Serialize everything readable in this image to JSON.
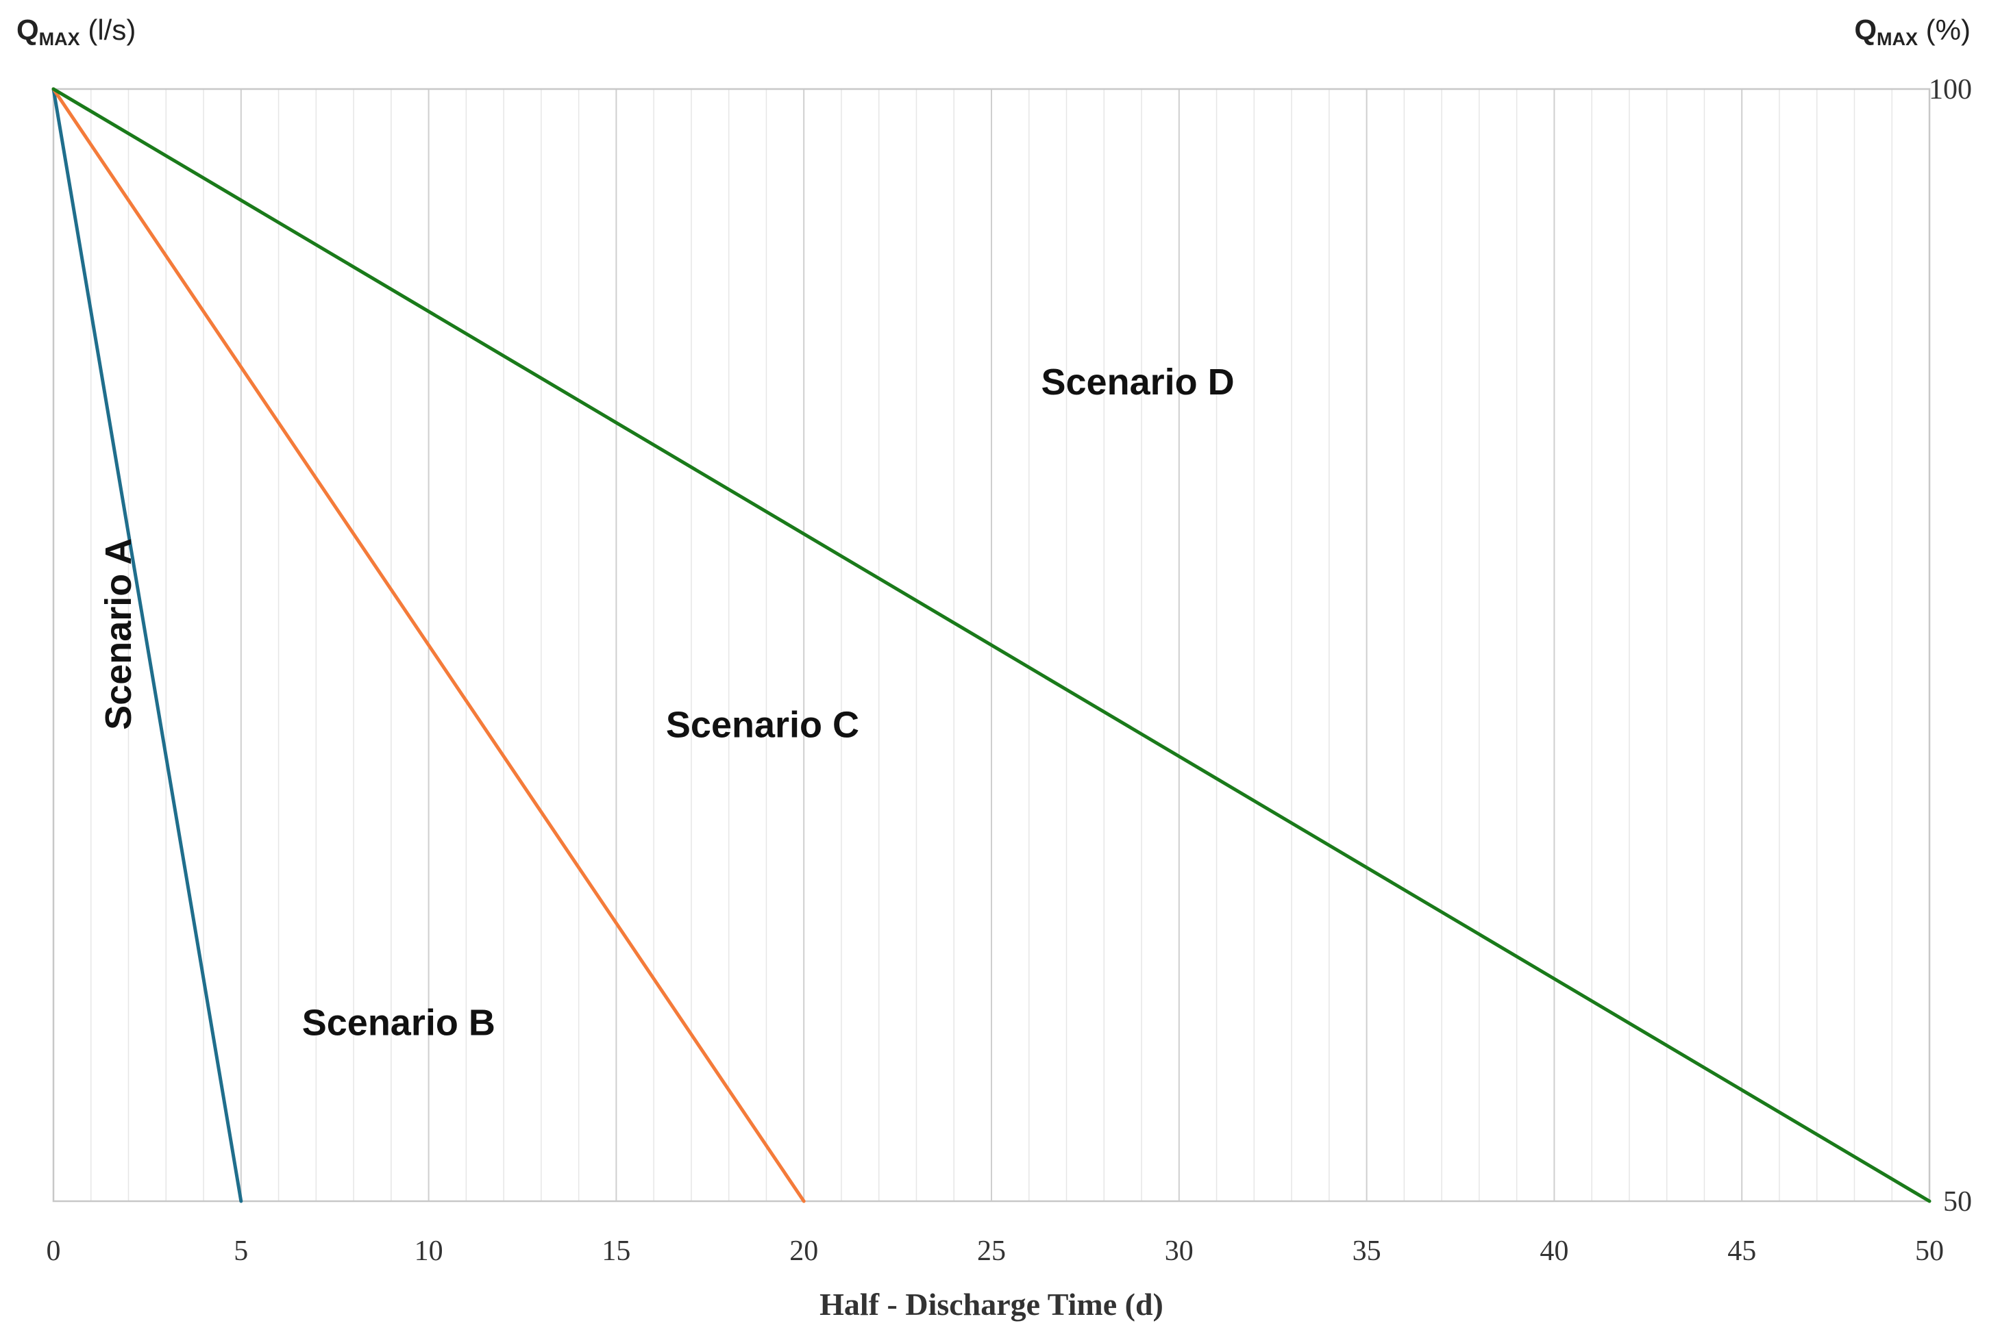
{
  "chart_data": {
    "type": "line",
    "left_axis_title": {
      "main": "Q",
      "sub": "MAX",
      "unit": " (l/s)"
    },
    "right_axis_title": {
      "main": "Q",
      "sub": "MAX",
      "unit": " (%)"
    },
    "xlabel": "Half - Discharge Time (d)",
    "xlim": [
      0,
      50
    ],
    "ylim": [
      50,
      100
    ],
    "x_ticks": [
      "0",
      "5",
      "10",
      "15",
      "20",
      "25",
      "30",
      "35",
      "40",
      "45",
      "50"
    ],
    "x_tick_values": [
      0,
      5,
      10,
      15,
      20,
      25,
      30,
      35,
      40,
      45,
      50
    ],
    "y_right_ticks": [
      "100",
      "50"
    ],
    "y_right_tick_values": [
      100,
      50
    ],
    "grid": true,
    "legend": "none",
    "series": [
      {
        "id": "a",
        "color": "#1f6e8c",
        "points": [
          [
            0,
            100
          ],
          [
            5,
            50
          ]
        ]
      },
      {
        "id": "b",
        "color": "#f47b3a",
        "points": [
          [
            0,
            100
          ],
          [
            20,
            50
          ]
        ]
      },
      {
        "id": "d",
        "color": "#1a7a1a",
        "points": [
          [
            0,
            100
          ],
          [
            50,
            50
          ]
        ]
      }
    ],
    "annotations": [
      {
        "id": "scenario-a",
        "text": "Scenario A",
        "x": 1.8,
        "y": 75.5,
        "rotate": true
      },
      {
        "id": "scenario-b",
        "text": "Scenario B",
        "x": 9.2,
        "y": 57.9
      },
      {
        "id": "scenario-c",
        "text": "Scenario C",
        "x": 18.9,
        "y": 71.3
      },
      {
        "id": "scenario-d",
        "text": "Scenario D",
        "x": 28.9,
        "y": 86.7
      }
    ]
  }
}
